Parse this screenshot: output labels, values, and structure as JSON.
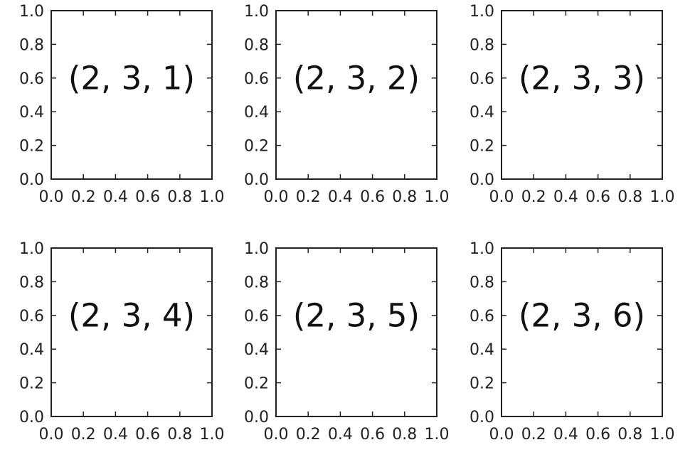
{
  "figure": {
    "background": "#ffffff",
    "axes_color": "#222222"
  },
  "chart_data": [
    {
      "type": "text",
      "subplot": "(2, 3, 1)",
      "annotation": "(2, 3, 1)",
      "xlim": [
        0.0,
        1.0
      ],
      "ylim": [
        0.0,
        1.0
      ],
      "xticks": [
        "0.0",
        "0.2",
        "0.4",
        "0.6",
        "0.8",
        "1.0"
      ],
      "yticks": [
        "0.0",
        "0.2",
        "0.4",
        "0.6",
        "0.8",
        "1.0"
      ],
      "grid": false
    },
    {
      "type": "text",
      "subplot": "(2, 3, 2)",
      "annotation": "(2, 3, 2)",
      "xlim": [
        0.0,
        1.0
      ],
      "ylim": [
        0.0,
        1.0
      ],
      "xticks": [
        "0.0",
        "0.2",
        "0.4",
        "0.6",
        "0.8",
        "1.0"
      ],
      "yticks": [
        "0.0",
        "0.2",
        "0.4",
        "0.6",
        "0.8",
        "1.0"
      ],
      "grid": false
    },
    {
      "type": "text",
      "subplot": "(2, 3, 3)",
      "annotation": "(2, 3, 3)",
      "xlim": [
        0.0,
        1.0
      ],
      "ylim": [
        0.0,
        1.0
      ],
      "xticks": [
        "0.0",
        "0.2",
        "0.4",
        "0.6",
        "0.8",
        "1.0"
      ],
      "yticks": [
        "0.0",
        "0.2",
        "0.4",
        "0.6",
        "0.8",
        "1.0"
      ],
      "grid": false
    },
    {
      "type": "text",
      "subplot": "(2, 3, 4)",
      "annotation": "(2, 3, 4)",
      "xlim": [
        0.0,
        1.0
      ],
      "ylim": [
        0.0,
        1.0
      ],
      "xticks": [
        "0.0",
        "0.2",
        "0.4",
        "0.6",
        "0.8",
        "1.0"
      ],
      "yticks": [
        "0.0",
        "0.2",
        "0.4",
        "0.6",
        "0.8",
        "1.0"
      ],
      "grid": false
    },
    {
      "type": "text",
      "subplot": "(2, 3, 5)",
      "annotation": "(2, 3, 5)",
      "xlim": [
        0.0,
        1.0
      ],
      "ylim": [
        0.0,
        1.0
      ],
      "xticks": [
        "0.0",
        "0.2",
        "0.4",
        "0.6",
        "0.8",
        "1.0"
      ],
      "yticks": [
        "0.0",
        "0.2",
        "0.4",
        "0.6",
        "0.8",
        "1.0"
      ],
      "grid": false
    },
    {
      "type": "text",
      "subplot": "(2, 3, 6)",
      "annotation": "(2, 3, 6)",
      "xlim": [
        0.0,
        1.0
      ],
      "ylim": [
        0.0,
        1.0
      ],
      "xticks": [
        "0.0",
        "0.2",
        "0.4",
        "0.6",
        "0.8",
        "1.0"
      ],
      "yticks": [
        "0.0",
        "0.2",
        "0.4",
        "0.6",
        "0.8",
        "1.0"
      ],
      "grid": false
    }
  ]
}
